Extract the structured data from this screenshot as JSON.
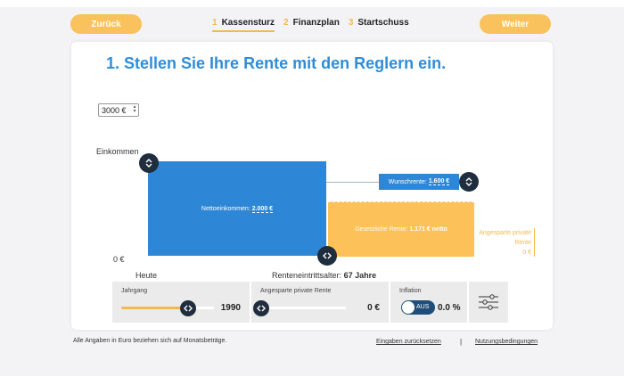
{
  "nav": {
    "back_label": "Zurück",
    "next_label": "Weiter",
    "steps": [
      {
        "num": "1",
        "label": "Kassensturz"
      },
      {
        "num": "2",
        "label": "Finanzplan"
      },
      {
        "num": "3",
        "label": "Startschuss"
      }
    ]
  },
  "headline": "1. Stellen Sie Ihre Rente mit den Reglern ein.",
  "scale_select": {
    "value": "3000 €"
  },
  "chart": {
    "income_label": "Einkommen",
    "zero_label": "0 €",
    "today_label": "Heute",
    "retirement_label": "Renteneintrittsalter:",
    "retirement_value": "67 Jahre",
    "net_income_label": "Nettoeinkommen:",
    "net_income_value": "2.000 €",
    "wish_label": "Wunschrente:",
    "wish_value": "1.600 €",
    "statutory_label": "Gesetzliche Rente:",
    "statutory_value": "1.171 € netto",
    "private_label_1": "Angesparte private",
    "private_label_2": "Rente",
    "private_value": "0 €"
  },
  "controls": {
    "birth_year": {
      "title": "Jahrgang",
      "value": "1990",
      "fraction": 0.72
    },
    "private_savings": {
      "title": "Angesparte private Rente",
      "value": "0 €",
      "fraction": 0.0
    },
    "inflation": {
      "title": "Inflation",
      "toggle_label": "AUS",
      "value": "0.0 %"
    },
    "settings_icon": "sliders-icon"
  },
  "footer": {
    "note": "Alle Angaben in Euro beziehen sich auf Monatsbeträge.",
    "reset_link": "Eingaben zurücksetzen",
    "separator": "|",
    "terms_link": "Nutzungsbedingungen"
  },
  "colors": {
    "primary_blue": "#2e87d6",
    "accent_orange": "#f9c25c",
    "knob_dark": "#1f2d3d"
  }
}
